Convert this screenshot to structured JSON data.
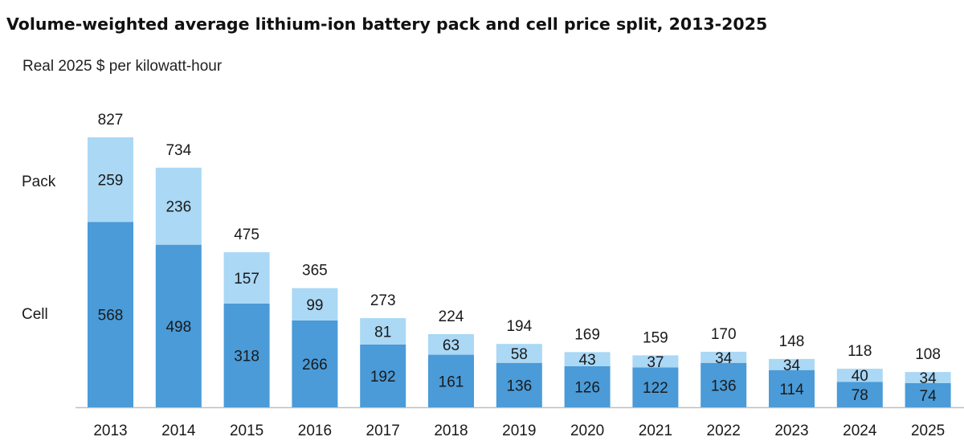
{
  "chart_data": {
    "type": "bar",
    "stacked": true,
    "title": "Volume-weighted average lithium-ion battery pack and cell price split, 2013-2025",
    "ylabel": "Real 2025 $ per kilowatt-hour",
    "xlabel": "",
    "categories": [
      "2013",
      "2014",
      "2015",
      "2016",
      "2017",
      "2018",
      "2019",
      "2020",
      "2021",
      "2022",
      "2023",
      "2024",
      "2025"
    ],
    "series": [
      {
        "name": "Cell",
        "color": "#4a9bd8",
        "values": [
          568,
          498,
          318,
          266,
          192,
          161,
          136,
          126,
          122,
          136,
          114,
          78,
          74
        ]
      },
      {
        "name": "Pack",
        "color": "#aad8f5",
        "values": [
          259,
          236,
          157,
          99,
          81,
          63,
          58,
          43,
          37,
          34,
          34,
          40,
          34
        ]
      }
    ],
    "totals": [
      827,
      734,
      475,
      365,
      273,
      224,
      194,
      169,
      159,
      170,
      148,
      118,
      108
    ],
    "ylim": [
      0,
      827
    ],
    "grid": false,
    "legend": "left-inline"
  }
}
